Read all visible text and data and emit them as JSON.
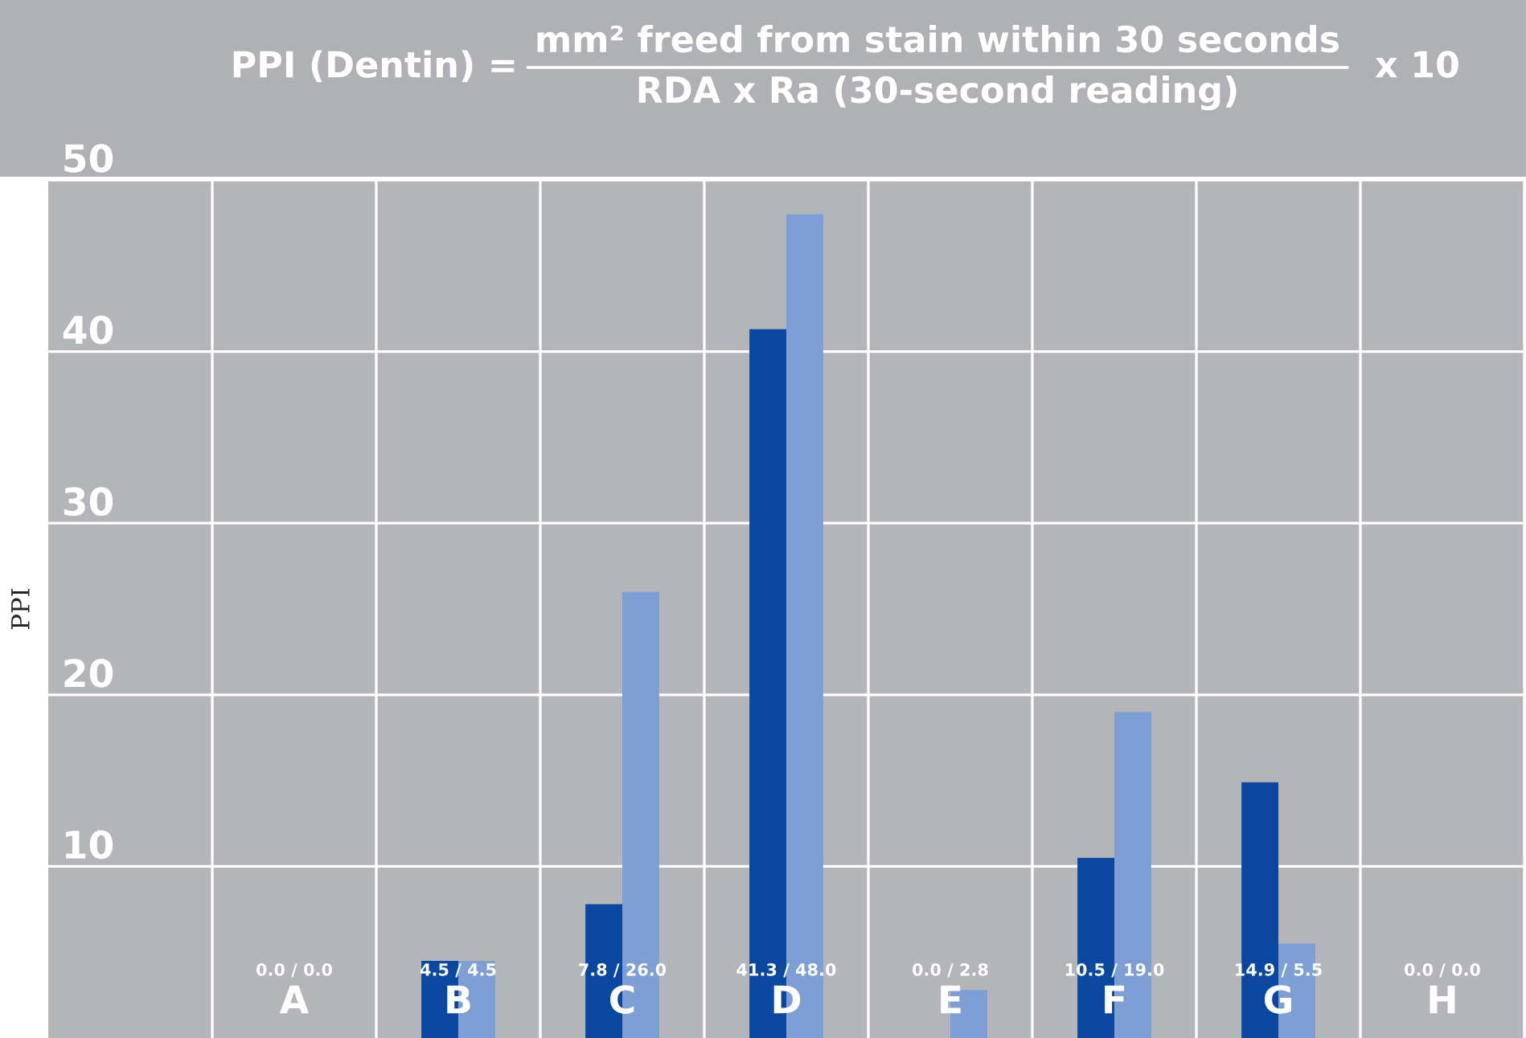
{
  "chart_data": {
    "type": "bar",
    "title": "PPI (Dentin) =",
    "annotations": [
      "mm² freed from stain within 30 seconds",
      "RDA x Ra (30-second reading)",
      "x 10"
    ],
    "ylabel": "PPI",
    "categories": [
      "A",
      "B",
      "C",
      "D",
      "E",
      "F",
      "G",
      "H"
    ],
    "series": [
      {
        "color": "#0a47a0",
        "values": [
          0.0,
          4.5,
          7.8,
          41.3,
          0.0,
          10.5,
          14.9,
          0.0
        ]
      },
      {
        "color": "#7d9fd6",
        "values": [
          0.0,
          4.5,
          26.0,
          48.0,
          2.8,
          19.0,
          5.5,
          0.0
        ]
      }
    ],
    "value_labels": [
      "0.0 / 0.0",
      "4.5 / 4.5",
      "7.8 / 26.0",
      "41.3 / 48.0",
      "0.0 / 2.8",
      "10.5 / 19.0",
      "14.9 / 5.5",
      "0.0 / 0.0"
    ],
    "ylim": [
      0,
      50
    ],
    "yticks": [
      10,
      20,
      30,
      40,
      50
    ],
    "grid": true
  }
}
